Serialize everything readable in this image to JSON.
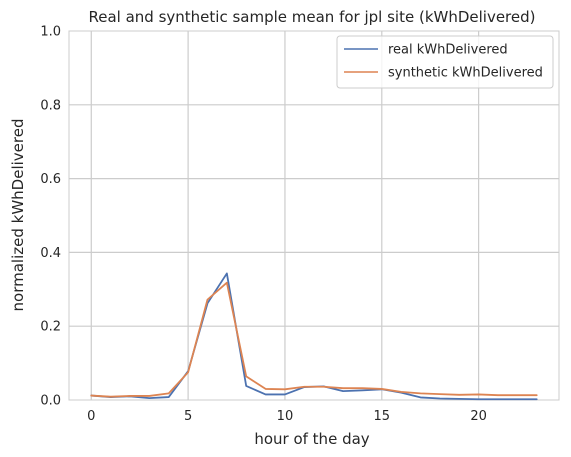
{
  "chart_data": {
    "type": "line",
    "title": "Real and synthetic sample mean for jpl site (kWhDelivered)",
    "xlabel": "hour of the day",
    "ylabel": "normalized kWhDelivered",
    "xlim": [
      -1.15,
      24.15
    ],
    "ylim": [
      0,
      1.0
    ],
    "xticks": [
      0,
      5,
      10,
      15,
      20
    ],
    "yticks": [
      0.0,
      0.2,
      0.4,
      0.6,
      0.8,
      1.0
    ],
    "xtick_labels": [
      "0",
      "5",
      "10",
      "15",
      "20"
    ],
    "ytick_labels": [
      "0.0",
      "0.2",
      "0.4",
      "0.6",
      "0.8",
      "1.0"
    ],
    "grid": true,
    "legend_position": "top-right",
    "x": [
      0,
      1,
      2,
      3,
      4,
      5,
      6,
      7,
      8,
      9,
      10,
      11,
      12,
      13,
      14,
      15,
      16,
      17,
      18,
      19,
      20,
      21,
      22,
      23
    ],
    "series": [
      {
        "name": "real kWhDelivered",
        "color": "#4c72b0",
        "values": [
          0.012,
          0.008,
          0.01,
          0.005,
          0.008,
          0.078,
          0.262,
          0.343,
          0.038,
          0.015,
          0.015,
          0.035,
          0.037,
          0.024,
          0.026,
          0.029,
          0.02,
          0.007,
          0.004,
          0.003,
          0.002,
          0.002,
          0.002,
          0.002
        ]
      },
      {
        "name": "synthetic kWhDelivered",
        "color": "#dd8452",
        "values": [
          0.012,
          0.009,
          0.011,
          0.011,
          0.018,
          0.075,
          0.272,
          0.318,
          0.064,
          0.03,
          0.029,
          0.036,
          0.036,
          0.032,
          0.032,
          0.03,
          0.022,
          0.018,
          0.016,
          0.014,
          0.015,
          0.013,
          0.013,
          0.013
        ]
      }
    ]
  }
}
